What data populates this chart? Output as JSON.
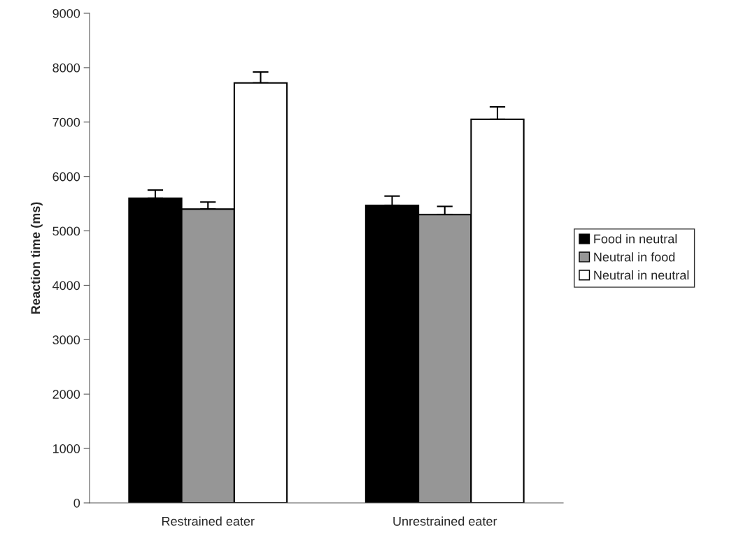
{
  "chart_data": {
    "type": "bar",
    "ylabel": "Reaction time (ms)",
    "categories": [
      "Restrained eater",
      "Unrestrained eater"
    ],
    "series": [
      {
        "name": "Food in neutral",
        "color": "#000000",
        "values": [
          5600,
          5470
        ],
        "errors": [
          150,
          170
        ]
      },
      {
        "name": "Neutral in food",
        "color": "#969696",
        "values": [
          5400,
          5300
        ],
        "errors": [
          130,
          150
        ]
      },
      {
        "name": "Neutral in neutral",
        "color": "#ffffff",
        "values": [
          7720,
          7050
        ],
        "errors": [
          200,
          230
        ]
      }
    ],
    "ylim": [
      0,
      9000
    ],
    "yticks": [
      0,
      1000,
      2000,
      3000,
      4000,
      5000,
      6000,
      7000,
      8000,
      9000
    ],
    "grid": false,
    "legend": "right"
  }
}
